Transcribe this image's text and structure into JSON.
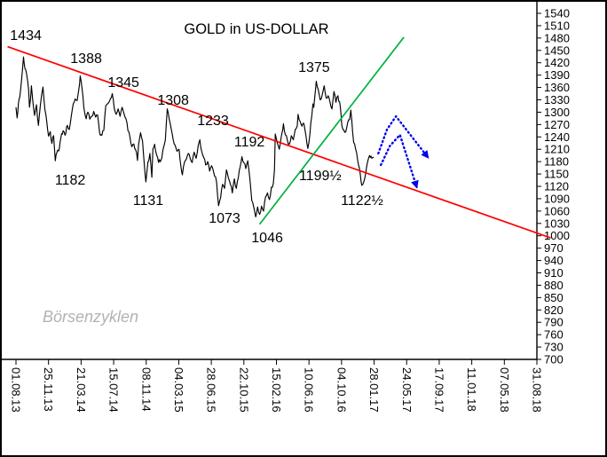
{
  "chart_data": {
    "type": "line",
    "title": "GOLD in US-DOLLAR",
    "watermark": "Börsenzyklen",
    "x_axis": {
      "label_interval_days": 116,
      "labels": [
        "01.08.13",
        "25.11.13",
        "21.03.14",
        "15.07.14",
        "08.11.14",
        "04.03.15",
        "28.06.15",
        "22.10.15",
        "15.02.16",
        "10.06.16",
        "04.10.16",
        "28.01.17",
        "24.05.17",
        "17.09.17",
        "11.01.18",
        "07.05.18",
        "31.08.18"
      ]
    },
    "y_axis": {
      "min": 700,
      "max": 1540,
      "step": 30,
      "ticks": [
        1540,
        1510,
        1480,
        1450,
        1420,
        1390,
        1360,
        1330,
        1300,
        1270,
        1240,
        1210,
        1180,
        1150,
        1120,
        1090,
        1060,
        1030,
        1000,
        970,
        940,
        910,
        880,
        850,
        820,
        790,
        760,
        730,
        700
      ]
    },
    "series": {
      "name": "Gold price in USD",
      "color": "#000000",
      "x_unit": "days since 01.08.13",
      "points": [
        [
          0,
          1312
        ],
        [
          4,
          1286
        ],
        [
          9,
          1322
        ],
        [
          14,
          1338
        ],
        [
          20,
          1378
        ],
        [
          27,
          1434
        ],
        [
          32,
          1406
        ],
        [
          38,
          1392
        ],
        [
          45,
          1356
        ],
        [
          48,
          1312
        ],
        [
          52,
          1332
        ],
        [
          55,
          1364
        ],
        [
          60,
          1326
        ],
        [
          66,
          1292
        ],
        [
          73,
          1318
        ],
        [
          80,
          1268
        ],
        [
          87,
          1317
        ],
        [
          92,
          1344
        ],
        [
          96,
          1361
        ],
        [
          103,
          1306
        ],
        [
          110,
          1275
        ],
        [
          116,
          1242
        ],
        [
          122,
          1253
        ],
        [
          128,
          1224
        ],
        [
          134,
          1243
        ],
        [
          140,
          1182
        ],
        [
          146,
          1203
        ],
        [
          152,
          1206
        ],
        [
          160,
          1238
        ],
        [
          168,
          1255
        ],
        [
          175,
          1244
        ],
        [
          183,
          1268
        ],
        [
          190,
          1258
        ],
        [
          197,
          1290
        ],
        [
          204,
          1320
        ],
        [
          211,
          1332
        ],
        [
          218,
          1328
        ],
        [
          224,
          1355
        ],
        [
          229,
          1388
        ],
        [
          235,
          1360
        ],
        [
          242,
          1311
        ],
        [
          250,
          1284
        ],
        [
          256,
          1300
        ],
        [
          263,
          1283
        ],
        [
          270,
          1290
        ],
        [
          277,
          1302
        ],
        [
          284,
          1288
        ],
        [
          291,
          1293
        ],
        [
          298,
          1250
        ],
        [
          306,
          1244
        ],
        [
          313,
          1256
        ],
        [
          320,
          1316
        ],
        [
          327,
          1321
        ],
        [
          334,
          1328
        ],
        [
          343,
          1345
        ],
        [
          350,
          1310
        ],
        [
          357,
          1295
        ],
        [
          364,
          1308
        ],
        [
          371,
          1290
        ],
        [
          378,
          1312
        ],
        [
          385,
          1296
        ],
        [
          392,
          1284
        ],
        [
          399,
          1255
        ],
        [
          406,
          1240
        ],
        [
          413,
          1216
        ],
        [
          420,
          1223
        ],
        [
          427,
          1208
        ],
        [
          433,
          1183
        ],
        [
          437,
          1222
        ],
        [
          444,
          1250
        ],
        [
          451,
          1230
        ],
        [
          458,
          1165
        ],
        [
          463,
          1131
        ],
        [
          470,
          1178
        ],
        [
          477,
          1200
        ],
        [
          484,
          1142
        ],
        [
          488,
          1211
        ],
        [
          494,
          1222
        ],
        [
          501,
          1196
        ],
        [
          508,
          1178
        ],
        [
          517,
          1184
        ],
        [
          525,
          1212
        ],
        [
          532,
          1232
        ],
        [
          539,
          1308
        ],
        [
          546,
          1283
        ],
        [
          553,
          1260
        ],
        [
          560,
          1234
        ],
        [
          567,
          1220
        ],
        [
          574,
          1205
        ],
        [
          581,
          1210
        ],
        [
          588,
          1166
        ],
        [
          593,
          1148
        ],
        [
          600,
          1178
        ],
        [
          607,
          1186
        ],
        [
          614,
          1200
        ],
        [
          621,
          1187
        ],
        [
          628,
          1178
        ],
        [
          635,
          1203
        ],
        [
          642,
          1188
        ],
        [
          649,
          1218
        ],
        [
          655,
          1233
        ],
        [
          662,
          1204
        ],
        [
          669,
          1190
        ],
        [
          676,
          1172
        ],
        [
          683,
          1180
        ],
        [
          690,
          1157
        ],
        [
          697,
          1170
        ],
        [
          704,
          1155
        ],
        [
          711,
          1143
        ],
        [
          715,
          1130
        ],
        [
          718,
          1100
        ],
        [
          722,
          1073
        ],
        [
          729,
          1092
        ],
        [
          736,
          1125
        ],
        [
          743,
          1115
        ],
        [
          750,
          1160
        ],
        [
          757,
          1140
        ],
        [
          764,
          1125
        ],
        [
          771,
          1104
        ],
        [
          778,
          1138
        ],
        [
          785,
          1115
        ],
        [
          792,
          1140
        ],
        [
          799,
          1168
        ],
        [
          805,
          1192
        ],
        [
          812,
          1177
        ],
        [
          819,
          1163
        ],
        [
          826,
          1182
        ],
        [
          833,
          1140
        ],
        [
          840,
          1086
        ],
        [
          847,
          1070
        ],
        [
          854,
          1046
        ],
        [
          861,
          1070
        ],
        [
          868,
          1052
        ],
        [
          875,
          1072
        ],
        [
          882,
          1060
        ],
        [
          889,
          1094
        ],
        [
          896,
          1104
        ],
        [
          903,
          1088
        ],
        [
          910,
          1118
        ],
        [
          917,
          1127
        ],
        [
          921,
          1160
        ],
        [
          924,
          1247
        ],
        [
          931,
          1226
        ],
        [
          938,
          1210
        ],
        [
          945,
          1240
        ],
        [
          953,
          1272
        ],
        [
          960,
          1245
        ],
        [
          967,
          1232
        ],
        [
          974,
          1222
        ],
        [
          981,
          1243
        ],
        [
          988,
          1233
        ],
        [
          995,
          1258
        ],
        [
          1002,
          1266
        ],
        [
          1005,
          1295
        ],
        [
          1012,
          1278
        ],
        [
          1019,
          1266
        ],
        [
          1026,
          1272
        ],
        [
          1033,
          1244
        ],
        [
          1040,
          1212
        ],
        [
          1047,
          1244
        ],
        [
          1054,
          1292
        ],
        [
          1058,
          1320
        ],
        [
          1061,
          1312
        ],
        [
          1065,
          1340
        ],
        [
          1070,
          1375
        ],
        [
          1077,
          1355
        ],
        [
          1084,
          1330
        ],
        [
          1091,
          1342
        ],
        [
          1098,
          1364
        ],
        [
          1105,
          1335
        ],
        [
          1112,
          1340
        ],
        [
          1119,
          1324
        ],
        [
          1126,
          1308
        ],
        [
          1133,
          1350
        ],
        [
          1140,
          1324
        ],
        [
          1147,
          1340
        ],
        [
          1156,
          1311
        ],
        [
          1161,
          1268
        ],
        [
          1168,
          1257
        ],
        [
          1175,
          1252
        ],
        [
          1182,
          1275
        ],
        [
          1189,
          1282
        ],
        [
          1193,
          1305
        ],
        [
          1196,
          1283
        ],
        [
          1203,
          1227
        ],
        [
          1210,
          1211
        ],
        [
          1217,
          1185
        ],
        [
          1224,
          1163
        ],
        [
          1232,
          1122.5
        ],
        [
          1239,
          1131
        ],
        [
          1246,
          1152
        ],
        [
          1253,
          1180
        ],
        [
          1260,
          1195
        ],
        [
          1268,
          1188
        ],
        [
          1275,
          1191
        ]
      ]
    },
    "trendlines": [
      {
        "name": "resistance-trendline",
        "color": "#ff0000",
        "from": [
          -30,
          1459
        ],
        "to": [
          1905,
          995
        ]
      },
      {
        "name": "support-trendline",
        "color": "#00b140",
        "from": [
          868,
          1028
        ],
        "to": [
          1382,
          1482
        ]
      }
    ],
    "projection_arrows": [
      {
        "name": "projection-arrow-upper",
        "color": "#0000ee",
        "points": [
          [
            1291,
            1200
          ],
          [
            1322,
            1258
          ],
          [
            1354,
            1290
          ],
          [
            1468,
            1190
          ]
        ]
      },
      {
        "name": "projection-arrow-lower",
        "color": "#0000ee",
        "points": [
          [
            1300,
            1172
          ],
          [
            1332,
            1218
          ],
          [
            1368,
            1245
          ],
          [
            1428,
            1118
          ]
        ]
      }
    ],
    "annotations": [
      {
        "text": "1434",
        "day": 35,
        "price": 1475
      },
      {
        "text": "1388",
        "day": 250,
        "price": 1419
      },
      {
        "text": "1345",
        "day": 383,
        "price": 1361
      },
      {
        "text": "1308",
        "day": 560,
        "price": 1318
      },
      {
        "text": "1233",
        "day": 702,
        "price": 1269
      },
      {
        "text": "1192",
        "day": 832,
        "price": 1217
      },
      {
        "text": "1375",
        "day": 1062,
        "price": 1398
      },
      {
        "text": "1182",
        "day": 193,
        "price": 1124
      },
      {
        "text": "1131",
        "day": 471,
        "price": 1075
      },
      {
        "text": "1073",
        "day": 743,
        "price": 1032
      },
      {
        "text": "1046",
        "day": 895,
        "price": 984
      },
      {
        "text": "1199½",
        "day": 1084,
        "price": 1135
      },
      {
        "text": "1122½",
        "day": 1233,
        "price": 1075
      }
    ]
  }
}
